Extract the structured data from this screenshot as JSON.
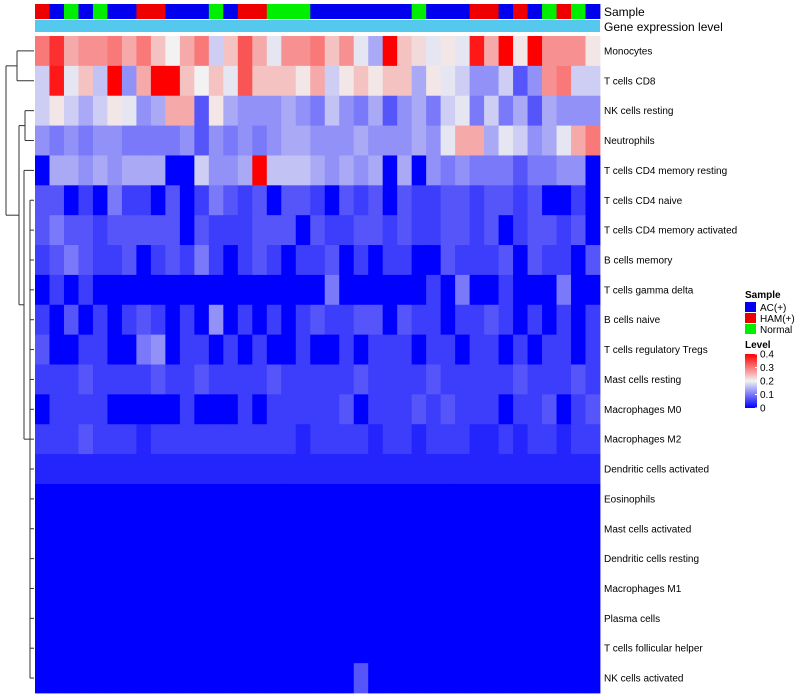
{
  "chart_data": {
    "type": "heatmap",
    "title": "",
    "n_samples": 39,
    "annotation_labels": {
      "sample": "Sample",
      "gene_expression": "Gene expression level"
    },
    "sample_groups": [
      "HAM(+)",
      "AC(+)",
      "Normal",
      "AC(+)",
      "Normal",
      "AC(+)",
      "AC(+)",
      "HAM(+)",
      "HAM(+)",
      "AC(+)",
      "AC(+)",
      "AC(+)",
      "Normal",
      "AC(+)",
      "HAM(+)",
      "HAM(+)",
      "Normal",
      "Normal",
      "Normal",
      "AC(+)",
      "AC(+)",
      "AC(+)",
      "AC(+)",
      "AC(+)",
      "AC(+)",
      "AC(+)",
      "Normal",
      "AC(+)",
      "AC(+)",
      "AC(+)",
      "HAM(+)",
      "HAM(+)",
      "AC(+)",
      "HAM(+)",
      "AC(+)",
      "Normal",
      "HAM(+)",
      "Normal",
      "AC(+)"
    ],
    "row_labels": [
      "Monocytes",
      "T cells CD8",
      "NK cells resting",
      "Neutrophils",
      "T cells CD4 memory resting",
      "T cells CD4 naive",
      "T cells CD4 memory activated",
      "B cells memory",
      "T cells gamma delta",
      "B cells naive",
      "T cells regulatory  Tregs",
      "Mast cells resting",
      "Macrophages M0",
      "Macrophages M2",
      "Dendritic cells activated",
      "Eosinophils",
      "Mast cells activated",
      "Dendritic cells resting",
      "Macrophages M1",
      "Plasma cells",
      "T cells follicular helper",
      "NK cells activated"
    ],
    "values": [
      [
        0.3,
        0.36,
        0.26,
        0.28,
        0.28,
        0.3,
        0.26,
        0.3,
        0.24,
        0.2,
        0.26,
        0.3,
        0.17,
        0.24,
        0.33,
        0.26,
        0.19,
        0.28,
        0.28,
        0.3,
        0.24,
        0.28,
        0.19,
        0.14,
        0.4,
        0.24,
        0.22,
        0.19,
        0.21,
        0.19,
        0.38,
        0.26,
        0.4,
        0.21,
        0.4,
        0.28,
        0.28,
        0.28,
        0.21
      ],
      [
        0.17,
        0.38,
        0.19,
        0.24,
        0.16,
        0.4,
        0.12,
        0.26,
        0.4,
        0.4,
        0.24,
        0.2,
        0.24,
        0.19,
        0.33,
        0.24,
        0.24,
        0.24,
        0.21,
        0.26,
        0.17,
        0.21,
        0.24,
        0.21,
        0.24,
        0.24,
        0.14,
        0.21,
        0.19,
        0.17,
        0.12,
        0.12,
        0.17,
        0.07,
        0.12,
        0.28,
        0.3,
        0.17,
        0.17
      ],
      [
        0.17,
        0.21,
        0.17,
        0.14,
        0.17,
        0.21,
        0.19,
        0.12,
        0.14,
        0.26,
        0.26,
        0.07,
        0.21,
        0.14,
        0.12,
        0.12,
        0.12,
        0.14,
        0.12,
        0.1,
        0.16,
        0.12,
        0.1,
        0.14,
        0.07,
        0.12,
        0.14,
        0.1,
        0.17,
        0.19,
        0.1,
        0.17,
        0.1,
        0.14,
        0.07,
        0.14,
        0.12,
        0.12,
        0.12
      ],
      [
        0.12,
        0.1,
        0.12,
        0.1,
        0.12,
        0.12,
        0.1,
        0.1,
        0.1,
        0.1,
        0.12,
        0.07,
        0.12,
        0.1,
        0.12,
        0.1,
        0.12,
        0.14,
        0.14,
        0.12,
        0.12,
        0.12,
        0.14,
        0.12,
        0.12,
        0.12,
        0.14,
        0.12,
        0.19,
        0.26,
        0.26,
        0.14,
        0.19,
        0.17,
        0.12,
        0.14,
        0.19,
        0.26,
        0.3
      ],
      [
        0.0,
        0.14,
        0.14,
        0.12,
        0.14,
        0.12,
        0.14,
        0.14,
        0.14,
        0.0,
        0.0,
        0.17,
        0.12,
        0.12,
        0.14,
        0.4,
        0.16,
        0.16,
        0.16,
        0.14,
        0.12,
        0.14,
        0.12,
        0.14,
        0.0,
        0.14,
        0.0,
        0.12,
        0.1,
        0.12,
        0.1,
        0.1,
        0.1,
        0.07,
        0.1,
        0.1,
        0.12,
        0.12,
        0.0
      ],
      [
        0.07,
        0.07,
        0.0,
        0.05,
        0.0,
        0.1,
        0.05,
        0.05,
        0.0,
        0.07,
        0.0,
        0.05,
        0.1,
        0.07,
        0.05,
        0.07,
        0.0,
        0.07,
        0.07,
        0.05,
        0.0,
        0.07,
        0.05,
        0.07,
        0.0,
        0.07,
        0.05,
        0.05,
        0.07,
        0.07,
        0.05,
        0.07,
        0.07,
        0.05,
        0.07,
        0.0,
        0.0,
        0.05,
        0.0
      ],
      [
        0.07,
        0.1,
        0.07,
        0.07,
        0.05,
        0.07,
        0.07,
        0.07,
        0.07,
        0.07,
        0.0,
        0.07,
        0.05,
        0.05,
        0.05,
        0.07,
        0.07,
        0.07,
        0.0,
        0.07,
        0.05,
        0.05,
        0.07,
        0.07,
        0.05,
        0.07,
        0.05,
        0.05,
        0.07,
        0.07,
        0.05,
        0.07,
        0.0,
        0.05,
        0.07,
        0.07,
        0.05,
        0.07,
        0.0
      ],
      [
        0.05,
        0.07,
        0.1,
        0.07,
        0.05,
        0.05,
        0.07,
        0.0,
        0.05,
        0.07,
        0.05,
        0.1,
        0.05,
        0.0,
        0.05,
        0.07,
        0.05,
        0.0,
        0.05,
        0.05,
        0.07,
        0.0,
        0.05,
        0.0,
        0.05,
        0.05,
        0.0,
        0.0,
        0.07,
        0.05,
        0.05,
        0.05,
        0.07,
        0.0,
        0.07,
        0.05,
        0.05,
        0.0,
        0.07
      ],
      [
        0.0,
        0.05,
        0.0,
        0.05,
        0.0,
        0.0,
        0.0,
        0.0,
        0.0,
        0.0,
        0.0,
        0.0,
        0.0,
        0.0,
        0.0,
        0.0,
        0.0,
        0.0,
        0.0,
        0.0,
        0.1,
        0.0,
        0.0,
        0.0,
        0.0,
        0.0,
        0.0,
        0.05,
        0.0,
        0.1,
        0.0,
        0.0,
        0.05,
        0.0,
        0.0,
        0.0,
        0.1,
        0.0,
        0.0
      ],
      [
        0.05,
        0.0,
        0.07,
        0.0,
        0.05,
        0.0,
        0.05,
        0.07,
        0.05,
        0.0,
        0.05,
        0.0,
        0.12,
        0.0,
        0.05,
        0.0,
        0.05,
        0.0,
        0.05,
        0.07,
        0.05,
        0.05,
        0.07,
        0.07,
        0.0,
        0.07,
        0.05,
        0.05,
        0.0,
        0.05,
        0.05,
        0.07,
        0.05,
        0.0,
        0.05,
        0.0,
        0.05,
        0.0,
        0.05
      ],
      [
        0.07,
        0.0,
        0.0,
        0.05,
        0.05,
        0.0,
        0.0,
        0.1,
        0.12,
        0.0,
        0.05,
        0.05,
        0.0,
        0.05,
        0.0,
        0.05,
        0.0,
        0.0,
        0.05,
        0.0,
        0.0,
        0.05,
        0.0,
        0.05,
        0.05,
        0.05,
        0.0,
        0.05,
        0.05,
        0.0,
        0.05,
        0.05,
        0.0,
        0.05,
        0.0,
        0.05,
        0.05,
        0.0,
        0.05
      ],
      [
        0.05,
        0.05,
        0.05,
        0.07,
        0.05,
        0.05,
        0.05,
        0.05,
        0.07,
        0.05,
        0.05,
        0.07,
        0.05,
        0.05,
        0.05,
        0.05,
        0.07,
        0.05,
        0.05,
        0.05,
        0.05,
        0.05,
        0.07,
        0.05,
        0.05,
        0.05,
        0.05,
        0.07,
        0.05,
        0.05,
        0.05,
        0.05,
        0.05,
        0.07,
        0.05,
        0.05,
        0.05,
        0.07,
        0.05
      ],
      [
        0.0,
        0.05,
        0.05,
        0.05,
        0.05,
        0.0,
        0.0,
        0.0,
        0.0,
        0.0,
        0.05,
        0.0,
        0.0,
        0.0,
        0.05,
        0.0,
        0.05,
        0.05,
        0.05,
        0.05,
        0.05,
        0.07,
        0.0,
        0.05,
        0.05,
        0.05,
        0.07,
        0.05,
        0.07,
        0.05,
        0.05,
        0.05,
        0.0,
        0.05,
        0.05,
        0.07,
        0.0,
        0.05,
        0.07
      ],
      [
        0.05,
        0.05,
        0.05,
        0.07,
        0.05,
        0.05,
        0.05,
        0.03,
        0.05,
        0.05,
        0.05,
        0.05,
        0.05,
        0.05,
        0.05,
        0.05,
        0.05,
        0.05,
        0.03,
        0.05,
        0.05,
        0.05,
        0.05,
        0.03,
        0.05,
        0.05,
        0.03,
        0.05,
        0.05,
        0.05,
        0.03,
        0.03,
        0.05,
        0.03,
        0.05,
        0.05,
        0.03,
        0.05,
        0.05
      ],
      [
        0.03,
        0.03,
        0.03,
        0.03,
        0.03,
        0.03,
        0.03,
        0.03,
        0.03,
        0.03,
        0.03,
        0.03,
        0.03,
        0.03,
        0.03,
        0.03,
        0.03,
        0.03,
        0.03,
        0.03,
        0.03,
        0.03,
        0.03,
        0.03,
        0.03,
        0.03,
        0.03,
        0.03,
        0.03,
        0.03,
        0.03,
        0.03,
        0.03,
        0.03,
        0.03,
        0.03,
        0.03,
        0.03,
        0.03
      ],
      [
        0.0,
        0.0,
        0.0,
        0.0,
        0.0,
        0.0,
        0.0,
        0.0,
        0.0,
        0.0,
        0.0,
        0.0,
        0.0,
        0.0,
        0.0,
        0.0,
        0.0,
        0.0,
        0.0,
        0.0,
        0.0,
        0.0,
        0.0,
        0.0,
        0.0,
        0.0,
        0.0,
        0.0,
        0.0,
        0.0,
        0.0,
        0.0,
        0.0,
        0.0,
        0.0,
        0.0,
        0.0,
        0.0,
        0.0
      ],
      [
        0.0,
        0.0,
        0.0,
        0.0,
        0.0,
        0.0,
        0.0,
        0.0,
        0.0,
        0.0,
        0.0,
        0.0,
        0.0,
        0.0,
        0.0,
        0.0,
        0.0,
        0.0,
        0.0,
        0.0,
        0.0,
        0.0,
        0.0,
        0.0,
        0.0,
        0.0,
        0.0,
        0.0,
        0.0,
        0.0,
        0.0,
        0.0,
        0.0,
        0.0,
        0.0,
        0.0,
        0.0,
        0.0,
        0.0
      ],
      [
        0.0,
        0.0,
        0.0,
        0.0,
        0.0,
        0.0,
        0.0,
        0.0,
        0.0,
        0.0,
        0.0,
        0.0,
        0.0,
        0.0,
        0.0,
        0.0,
        0.0,
        0.0,
        0.0,
        0.0,
        0.0,
        0.0,
        0.0,
        0.0,
        0.0,
        0.0,
        0.0,
        0.0,
        0.0,
        0.0,
        0.0,
        0.0,
        0.0,
        0.0,
        0.0,
        0.0,
        0.0,
        0.0,
        0.0
      ],
      [
        0.0,
        0.0,
        0.0,
        0.0,
        0.0,
        0.0,
        0.0,
        0.0,
        0.0,
        0.0,
        0.0,
        0.0,
        0.0,
        0.0,
        0.0,
        0.0,
        0.0,
        0.0,
        0.0,
        0.0,
        0.0,
        0.0,
        0.0,
        0.0,
        0.0,
        0.0,
        0.0,
        0.0,
        0.0,
        0.0,
        0.0,
        0.0,
        0.0,
        0.0,
        0.0,
        0.0,
        0.0,
        0.0,
        0.0
      ],
      [
        0.0,
        0.0,
        0.0,
        0.0,
        0.0,
        0.0,
        0.0,
        0.0,
        0.0,
        0.0,
        0.0,
        0.0,
        0.0,
        0.0,
        0.0,
        0.0,
        0.0,
        0.0,
        0.0,
        0.0,
        0.0,
        0.0,
        0.0,
        0.0,
        0.0,
        0.0,
        0.0,
        0.0,
        0.0,
        0.0,
        0.0,
        0.0,
        0.0,
        0.0,
        0.0,
        0.0,
        0.0,
        0.0,
        0.0
      ],
      [
        0.0,
        0.0,
        0.0,
        0.0,
        0.0,
        0.0,
        0.0,
        0.0,
        0.0,
        0.0,
        0.0,
        0.0,
        0.0,
        0.0,
        0.0,
        0.0,
        0.0,
        0.0,
        0.0,
        0.0,
        0.0,
        0.0,
        0.0,
        0.0,
        0.0,
        0.0,
        0.0,
        0.0,
        0.0,
        0.0,
        0.0,
        0.0,
        0.0,
        0.0,
        0.0,
        0.0,
        0.0,
        0.0,
        0.0
      ],
      [
        0.0,
        0.0,
        0.0,
        0.0,
        0.0,
        0.0,
        0.0,
        0.0,
        0.0,
        0.0,
        0.0,
        0.0,
        0.0,
        0.0,
        0.0,
        0.0,
        0.0,
        0.0,
        0.0,
        0.0,
        0.0,
        0.0,
        0.07,
        0.0,
        0.0,
        0.0,
        0.0,
        0.0,
        0.0,
        0.0,
        0.0,
        0.0,
        0.0,
        0.0,
        0.0,
        0.0,
        0.0,
        0.0,
        0.0
      ]
    ],
    "value_range": [
      0,
      0.4
    ],
    "legend": {
      "sample_title": "Sample",
      "sample_entries": [
        {
          "label": "AC(+)",
          "color": "#0000ee"
        },
        {
          "label": "HAM(+)",
          "color": "#ee0000"
        },
        {
          "label": "Normal",
          "color": "#00ee00"
        }
      ],
      "level_title": "Level",
      "level_ticks": [
        "0.4",
        "0.3",
        "0.2",
        "0.1",
        "0"
      ],
      "level_tick_values": [
        0.4,
        0.3,
        0.2,
        0.1,
        0
      ],
      "placement": "right"
    },
    "colors": {
      "low": "#0000ff",
      "mid": "#f2f2f2",
      "high": "#ff0000",
      "gene_expression_bar": "#55c8ee",
      "dendrogram": "#333333"
    }
  }
}
